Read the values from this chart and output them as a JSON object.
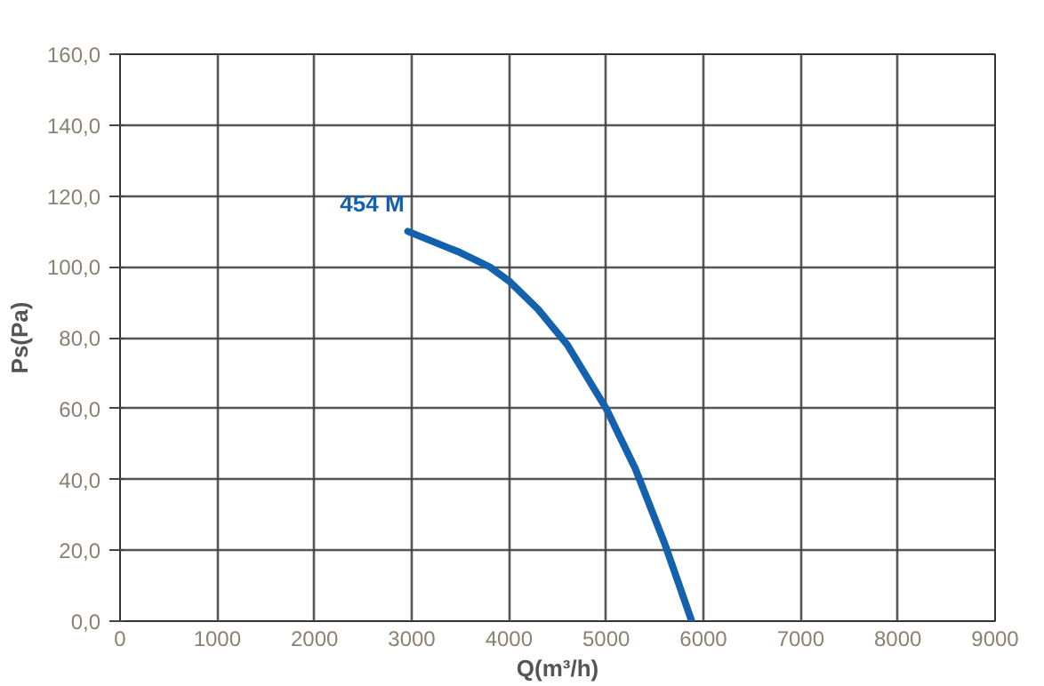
{
  "chart_data": {
    "type": "line",
    "xlabel": "Q(m³/h)",
    "ylabel": "Ps(Pa)",
    "x": [
      2960,
      3500,
      3800,
      4000,
      4300,
      4600,
      5000,
      5300,
      5600,
      5880
    ],
    "series": [
      {
        "name": "454 M",
        "color": "#1462ad",
        "values": [
          110,
          104,
          100,
          96,
          88,
          78,
          60,
          43,
          22,
          0
        ]
      }
    ],
    "xlim": [
      0,
      9000
    ],
    "ylim": [
      0,
      160
    ],
    "xticks": [
      0,
      1000,
      2000,
      3000,
      4000,
      5000,
      6000,
      7000,
      8000,
      9000
    ],
    "yticks": [
      {
        "value": 0,
        "label": "0,0"
      },
      {
        "value": 20,
        "label": "20,0"
      },
      {
        "value": 40,
        "label": "40,0"
      },
      {
        "value": 60,
        "label": "60,0"
      },
      {
        "value": 80,
        "label": "80,0"
      },
      {
        "value": 100,
        "label": "100,0"
      },
      {
        "value": 120,
        "label": "120,0"
      },
      {
        "value": 140,
        "label": "140,0"
      },
      {
        "value": 160,
        "label": "160,0"
      }
    ],
    "grid": true,
    "line_style": "solid",
    "marker": "none"
  }
}
